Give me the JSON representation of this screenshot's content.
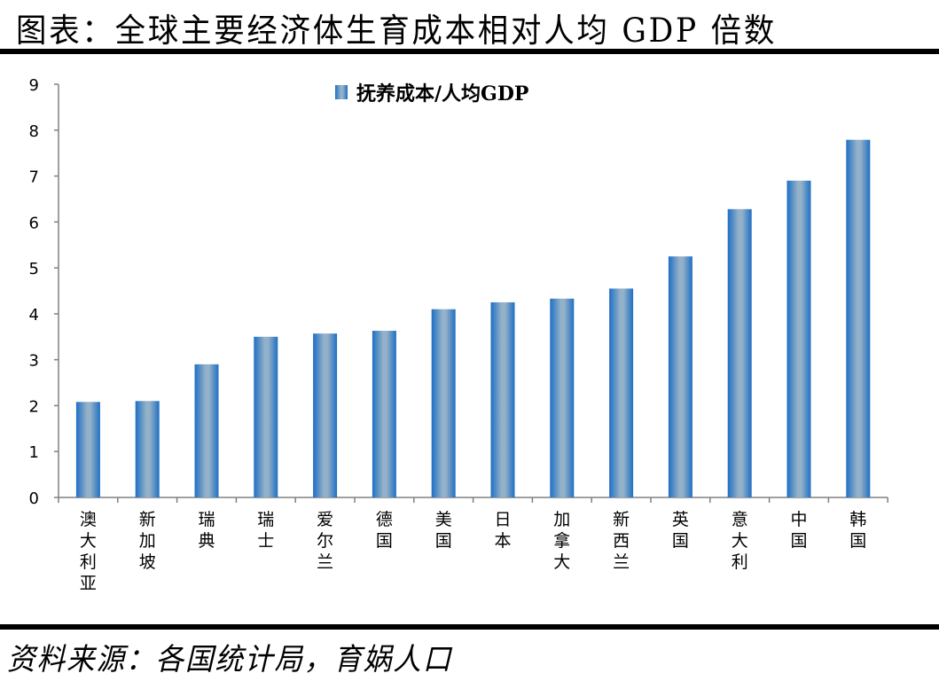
{
  "title": "图表：全球主要经济体生育成本相对人均 GDP 倍数",
  "source": "资料来源：各国统计局，育娲人口",
  "colors": {
    "bar_edge": "#1f6fc4",
    "bar_center": "#93b1c8",
    "axis": "#808080"
  },
  "chart_data": {
    "type": "bar",
    "title": "图表：全球主要经济体生育成本相对人均 GDP 倍数",
    "xlabel": "",
    "ylabel": "",
    "ylim": [
      0,
      9
    ],
    "yticks": [
      0,
      1,
      2,
      3,
      4,
      5,
      6,
      7,
      8,
      9
    ],
    "grid": false,
    "legend_position": "top-center",
    "categories": [
      "澳大利亚",
      "新加坡",
      "瑞典",
      "瑞士",
      "爱尔兰",
      "德国",
      "美国",
      "日本",
      "加拿大",
      "新西兰",
      "英国",
      "意大利",
      "中国",
      "韩国"
    ],
    "series": [
      {
        "name": "抚养成本/人均GDP",
        "values": [
          2.08,
          2.1,
          2.9,
          3.5,
          3.57,
          3.63,
          4.1,
          4.25,
          4.33,
          4.55,
          5.25,
          6.28,
          6.9,
          7.79
        ]
      }
    ]
  }
}
